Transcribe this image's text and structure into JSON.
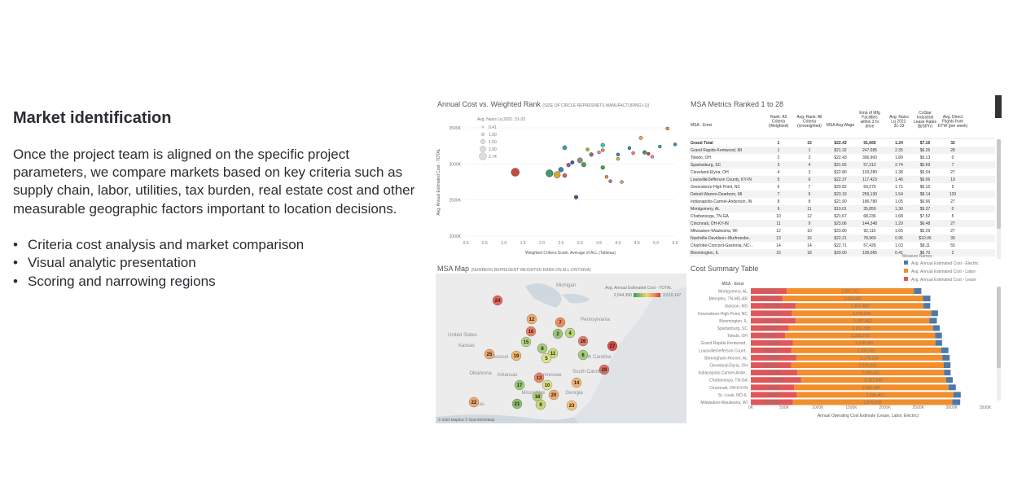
{
  "left": {
    "heading": "Market identification",
    "paragraph": "Once the project team is aligned on the specific project parameters, we compare markets based on key criteria such as supply chain, labor, utilities, tax burden, real estate cost and other measurable geographic factors important to location decisions.",
    "bullets": [
      "Criteria cost analysis and market comparison",
      "Visual analytic presentation",
      "Scoring and narrowing regions"
    ]
  },
  "scatter": {
    "title": "Annual Cost vs. Weighted Rank",
    "subtitle": "(SIZE OF CIRCLE REPRESNETS MANUFACTURING LQ)",
    "legend_title": "Avg. Naics Lq 2021: 31-33",
    "legend_values": [
      "0.41",
      "1.00",
      "1.50",
      "2.00",
      "2.74"
    ],
    "xlabel": "Weighted Critiera Scale: Average of ALL (Tableau)",
    "ylabel": "Avg. Annual Estimated Cost - TOTAL",
    "xticks": [
      "0.0",
      "0.5",
      "1.0",
      "1.5",
      "2.0",
      "2.5",
      "3.0",
      "3.5",
      "4.0",
      "4.5",
      "5.0",
      "5.5"
    ],
    "yticks": [
      "3500K",
      "3000K",
      "2500K",
      "2000K"
    ],
    "points": [
      {
        "x": 1.3,
        "y": 2885,
        "r": 2.5,
        "c": "#c0392b"
      },
      {
        "x": 2.2,
        "y": 2870,
        "r": 2.2,
        "c": "#2e8b57"
      },
      {
        "x": 2.4,
        "y": 2850,
        "r": 2.0,
        "c": "#d4a017"
      },
      {
        "x": 2.5,
        "y": 2920,
        "r": 1.5,
        "c": "#1f77b4"
      },
      {
        "x": 2.6,
        "y": 2840,
        "r": 1.3,
        "c": "#d9534f"
      },
      {
        "x": 2.7,
        "y": 2985,
        "r": 1.2,
        "c": "#8e44ad"
      },
      {
        "x": 2.8,
        "y": 3020,
        "r": 1.1,
        "c": "#1f4e79"
      },
      {
        "x": 3.0,
        "y": 3050,
        "r": 1.6,
        "c": "#7f7f7f"
      },
      {
        "x": 3.1,
        "y": 2990,
        "r": 1.4,
        "c": "#2ca02c"
      },
      {
        "x": 3.3,
        "y": 3130,
        "r": 1.2,
        "c": "#8c564b"
      },
      {
        "x": 3.5,
        "y": 3160,
        "r": 1.0,
        "c": "#e377c2"
      },
      {
        "x": 3.6,
        "y": 3260,
        "r": 1.2,
        "c": "#17becf"
      },
      {
        "x": 3.6,
        "y": 3190,
        "r": 1.0,
        "c": "#ff7f0e"
      },
      {
        "x": 3.7,
        "y": 2820,
        "r": 1.0,
        "c": "#e67e22"
      },
      {
        "x": 3.8,
        "y": 2760,
        "r": 1.0,
        "c": "#9467bd"
      },
      {
        "x": 4.0,
        "y": 3130,
        "r": 1.0,
        "c": "#1f77b4"
      },
      {
        "x": 4.0,
        "y": 3070,
        "r": 1.0,
        "c": "#bcbd22"
      },
      {
        "x": 4.1,
        "y": 2750,
        "r": 1.0,
        "c": "#c49c94"
      },
      {
        "x": 3.6,
        "y": 2950,
        "r": 1.2,
        "c": "#2ca02c"
      },
      {
        "x": 2.6,
        "y": 3225,
        "r": 1.3,
        "c": "#1a9e9e"
      },
      {
        "x": 3.2,
        "y": 3200,
        "r": 1.0,
        "c": "#7fba00"
      },
      {
        "x": 2.9,
        "y": 2540,
        "r": 1.2,
        "c": "#1f4e79"
      },
      {
        "x": 4.7,
        "y": 3160,
        "r": 1.2,
        "c": "#2e8b57"
      },
      {
        "x": 4.8,
        "y": 3140,
        "r": 1.0,
        "c": "#d62728"
      },
      {
        "x": 4.3,
        "y": 3220,
        "r": 1.0,
        "c": "#1f77b4"
      },
      {
        "x": 4.6,
        "y": 3360,
        "r": 1.1,
        "c": "#ff9933"
      },
      {
        "x": 4.9,
        "y": 3100,
        "r": 1.0,
        "c": "#e377c2"
      },
      {
        "x": 5.1,
        "y": 3240,
        "r": 1.0,
        "c": "#17a589"
      },
      {
        "x": 5.3,
        "y": 3490,
        "r": 1.0,
        "c": "#e67e22"
      },
      {
        "x": 5.5,
        "y": 3270,
        "r": 1.0,
        "c": "#2c7fb8"
      },
      {
        "x": 4.4,
        "y": 3150,
        "r": 1.0,
        "c": "#ff6f61"
      }
    ]
  },
  "metrics": {
    "title": "MSA Metrics Ranked 1 to 28",
    "headers": [
      "MSA - Emsi",
      "Rank: All Criteria (Weighted)",
      "Avg. Rank: All Criteria (Unweighted)",
      "MSA Avg Wage",
      "Emp of Mfg Facilities within 3 hr drive",
      "Avg. Naics Lq 2021: 31-33",
      "CoStar Industrial Lease Rates ($/Sf/Yr)",
      "Avg. Direct Flights from DTW (per week)"
    ],
    "rows": [
      [
        "Grand Total",
        "1",
        "15",
        "$22.43",
        "91,666",
        "1.24",
        "$7.16",
        "32"
      ],
      [
        "Grand Rapids-Kentwood, MI",
        "1",
        "1",
        "$21.32",
        "247,685",
        "2.35",
        "$6.26",
        "28"
      ],
      [
        "Toledo, OH",
        "2",
        "2",
        "$22.43",
        "306,900",
        "1.89",
        "$5.13",
        "0"
      ],
      [
        "Spartanburg, SC",
        "3",
        "4",
        "$21.65",
        "57,312",
        "2.74",
        "$5.69",
        "7"
      ],
      [
        "Cleveland-Elyria, OH",
        "4",
        "3",
        "$22.80",
        "193,280",
        "1.38",
        "$6.04",
        "27"
      ],
      [
        "Louisville/Jefferson County, KY-IN",
        "5",
        "6",
        "$22.37",
        "117,423",
        "1.46",
        "$6.06",
        "19"
      ],
      [
        "Greensboro-High Point, NC",
        "6",
        "7",
        "$20.82",
        "50,275",
        "1.71",
        "$6.15",
        "5"
      ],
      [
        "Detroit-Warren-Dearborn, MI",
        "7",
        "5",
        "$23.19",
        "259,130",
        "1.54",
        "$8.14",
        "120"
      ],
      [
        "Indianapolis-Carmel-Anderson, IN",
        "8",
        "8",
        "$21.90",
        "186,780",
        "1.05",
        "$6.96",
        "27"
      ],
      [
        "Montgomery, AL",
        "9",
        "11",
        "$19.01",
        "35,859",
        "1.30",
        "$5.37",
        "0"
      ],
      [
        "Chattanooga, TN-GA",
        "10",
        "12",
        "$21.67",
        "68,236",
        "1.68",
        "$7.52",
        "5"
      ],
      [
        "Cincinnati, OH-KY-IN",
        "11",
        "9",
        "$23.06",
        "144,348",
        "1.29",
        "$6.48",
        "27"
      ],
      [
        "Milwaukee-Waukesha, WI",
        "12",
        "10",
        "$23.80",
        "92,110",
        "1.65",
        "$5.29",
        "27"
      ],
      [
        "Nashville-Davidson--Murfreesbo..",
        "13",
        "16",
        "$22.21",
        "78,969",
        "0.95",
        "$10.06",
        "39"
      ],
      [
        "Charlotte-Concord-Gastonia, NC-..",
        "14",
        "14",
        "$22.71",
        "57,428",
        "1.03",
        "$8.11",
        "55"
      ],
      [
        "Bloomington, IL",
        "15",
        "18",
        "$20.00",
        "109,065",
        "0.41",
        "$6.70",
        "2"
      ]
    ]
  },
  "map": {
    "title": "MSA Map",
    "subtitle": "(NUMBERS REPRESENT WEIGHTED RANK ON ALL CRITERIA)",
    "legend_title": "Avg. Annual Estimated Cost - TOTAL",
    "legend_min": "2,544,390",
    "legend_max": "3,610,147",
    "states": [
      "Michigan",
      "Pennsylvania",
      "United States",
      "Kansas",
      "Missouri",
      "Oklahoma",
      "Tennessee",
      "Arkansas",
      "North Carolina",
      "South Carolina",
      "Georgia",
      "Mississippi",
      "Texas"
    ],
    "copyright": "© 2023 Mapbox  © OpenStreetMap",
    "markers": [
      {
        "label": "24",
        "x": 76,
        "y": 27,
        "c": "#e8544a"
      },
      {
        "label": "12",
        "x": 118,
        "y": 50,
        "c": "#f6a45a"
      },
      {
        "label": "7",
        "x": 153,
        "y": 54,
        "c": "#f08050"
      },
      {
        "label": "16",
        "x": 117,
        "y": 65,
        "c": "#f07050"
      },
      {
        "label": "2",
        "x": 150,
        "y": 68,
        "c": "#8fc06a"
      },
      {
        "label": "4",
        "x": 165,
        "y": 67,
        "c": "#b4d070"
      },
      {
        "label": "15",
        "x": 111,
        "y": 78,
        "c": "#b0d070"
      },
      {
        "label": "26",
        "x": 181,
        "y": 77,
        "c": "#e57060"
      },
      {
        "label": "27",
        "x": 217,
        "y": 83,
        "c": "#d63a36"
      },
      {
        "label": "8",
        "x": 131,
        "y": 86,
        "c": "#9cc86a"
      },
      {
        "label": "11",
        "x": 144,
        "y": 92,
        "c": "#c8d870"
      },
      {
        "label": "25",
        "x": 66,
        "y": 93,
        "c": "#f4a060"
      },
      {
        "label": "19",
        "x": 99,
        "y": 95,
        "c": "#f4b060"
      },
      {
        "label": "5",
        "x": 136,
        "y": 98,
        "c": "#dfe080"
      },
      {
        "label": "6",
        "x": 181,
        "y": 94,
        "c": "#a0c870"
      },
      {
        "label": "28",
        "x": 207,
        "y": 112,
        "c": "#e06050"
      },
      {
        "label": "13",
        "x": 127,
        "y": 122,
        "c": "#ee8050"
      },
      {
        "label": "14",
        "x": 173,
        "y": 128,
        "c": "#f8b060"
      },
      {
        "label": "17",
        "x": 103,
        "y": 131,
        "c": "#8dc868"
      },
      {
        "label": "10",
        "x": 137,
        "y": 131,
        "c": "#dde080"
      },
      {
        "label": "20",
        "x": 145,
        "y": 143,
        "c": "#f4a860"
      },
      {
        "label": "18",
        "x": 125,
        "y": 145,
        "c": "#a8cc6a"
      },
      {
        "label": "22",
        "x": 47,
        "y": 152,
        "c": "#f4a060"
      },
      {
        "label": "21",
        "x": 100,
        "y": 154,
        "c": "#7fba60"
      },
      {
        "label": "9",
        "x": 129,
        "y": 155,
        "c": "#c0d470"
      },
      {
        "label": "23",
        "x": 167,
        "y": 156,
        "c": "#f8c070"
      }
    ]
  },
  "cost": {
    "title": "Cost Summary Table",
    "msa_header": "MSA - Emsi",
    "legend_title": "Measure Names",
    "legend": [
      {
        "name": "Avg. Annual Estimated Cost - Electric",
        "c": "#4e79a7"
      },
      {
        "name": "Avg. Annual Estimated Cost - Labor",
        "c": "#f28e2b"
      },
      {
        "name": "Avg. Annual Estimated Cost - Lease",
        "c": "#e15759"
      }
    ],
    "xlabel": "Annual Operating Cost Estimate (Lease, Labor, Electric)",
    "xticks": [
      "0K",
      "500K",
      "1000K",
      "1500K",
      "2000K",
      "2500K",
      "3000K",
      "3500K"
    ],
    "rows": [
      {
        "msa": "Montgomery, AL",
        "lease": 537,
        "lease_label": "537,000",
        "labor": 1897.751,
        "labor_label": "1,897,751",
        "elec": 110
      },
      {
        "msa": "Memphis, TN-MS-AR",
        "lease": 476,
        "lease_label": "476,000",
        "labor": 2093.887,
        "labor_label": "2,093,887",
        "elec": 110
      },
      {
        "msa": "Jackson, MS",
        "lease": 670,
        "lease_label": "670,000",
        "labor": 1907.4,
        "labor_label": "1,907,400",
        "elec": 100
      },
      {
        "msa": "Greensboro-High Point, NC",
        "lease": 615,
        "lease_label": "615,000",
        "labor": 2078.695,
        "labor_label": "2,078,695",
        "elec": 100
      },
      {
        "msa": "Bloomington, IL",
        "lease": 670,
        "lease_label": "670,000",
        "labor": 1997.062,
        "labor_label": "1,997,062",
        "elec": 110
      },
      {
        "msa": "Spartanburg, SC",
        "lease": 569,
        "lease_label": "569,000",
        "labor": 2151.309,
        "labor_label": "2,151,309",
        "elec": 100
      },
      {
        "msa": "Toledo, OH",
        "lease": 513,
        "lease_label": "513,000",
        "labor": 2239.273,
        "labor_label": "2,239,273",
        "elec": 100
      },
      {
        "msa": "Grand Rapids-Kentwood..",
        "lease": 626,
        "lease_label": "626,000",
        "labor": 2128.5,
        "labor_label": "2,128,500",
        "elec": 100
      },
      {
        "msa": "Louisville/Jefferson Count..",
        "lease": 606,
        "lease_label": "606,000",
        "labor": 2233.532,
        "labor_label": "2,233,532",
        "elec": 110
      },
      {
        "msa": "Birmingham-Hoover, AL",
        "lease": 680,
        "lease_label": "680,000",
        "labor": 2178.11,
        "labor_label": "2,178,110",
        "elec": 110
      },
      {
        "msa": "Cleveland-Elyria, OH",
        "lease": 604,
        "lease_label": "604,000",
        "labor": 2276.016,
        "labor_label": "2,276,016",
        "elec": 100
      },
      {
        "msa": "Indianapolis-Carmel-Ande..",
        "lease": 696,
        "lease_label": "696,000",
        "labor": 2186.421,
        "labor_label": "2,186,421",
        "elec": 100
      },
      {
        "msa": "Chattanooga, TN-GA",
        "lease": 752,
        "lease_label": "752,000",
        "labor": 2162.546,
        "labor_label": "2,162,546",
        "elec": 100
      },
      {
        "msa": "Cincinnati, OH-KY-IN",
        "lease": 648,
        "lease_label": "648,000",
        "labor": 2301.957,
        "labor_label": "2,301,957",
        "elec": 110
      },
      {
        "msa": "St. Louis, MO-IL",
        "lease": 688,
        "lease_label": "688,000",
        "labor": 2335.463,
        "labor_label": "2,335,463",
        "elec": 110
      },
      {
        "msa": "Milwaukee-Waukesha, WI",
        "lease": 629,
        "lease_label": "629,000",
        "labor": 2376.292,
        "labor_label": "2,376,292",
        "elec": 120
      }
    ]
  }
}
